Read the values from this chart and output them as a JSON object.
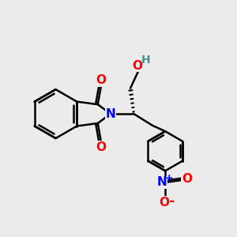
{
  "bg_color": "#ebebeb",
  "bond_color": "#000000",
  "bond_width": 1.8,
  "figsize": [
    3.0,
    3.0
  ],
  "dpi": 100,
  "xlim": [
    0,
    10
  ],
  "ylim": [
    0,
    10
  ]
}
